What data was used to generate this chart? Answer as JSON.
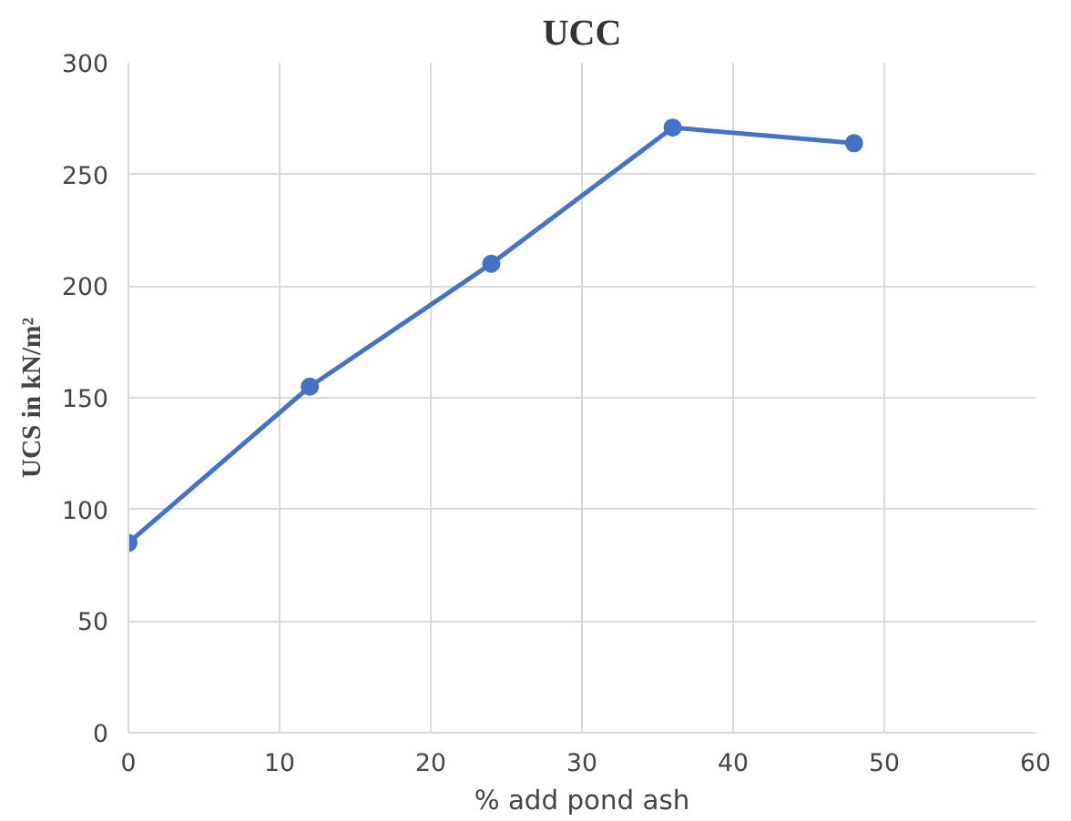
{
  "chart_data": {
    "type": "line",
    "title": "UCC",
    "xlabel": "% add pond ash",
    "ylabel": "UCS in kN/m²",
    "x": [
      0,
      12,
      24,
      36,
      48
    ],
    "series": [
      {
        "color": "#4472c4",
        "values": [
          85,
          155,
          210,
          271,
          264
        ]
      }
    ],
    "xlim": [
      0,
      60
    ],
    "xticks": [
      0,
      10,
      20,
      30,
      40,
      50,
      60
    ],
    "ylim": [
      0,
      300
    ],
    "yticks": [
      0,
      50,
      100,
      150,
      200,
      250,
      300
    ],
    "grid": true,
    "marker": "circle",
    "line_style": "solid"
  }
}
